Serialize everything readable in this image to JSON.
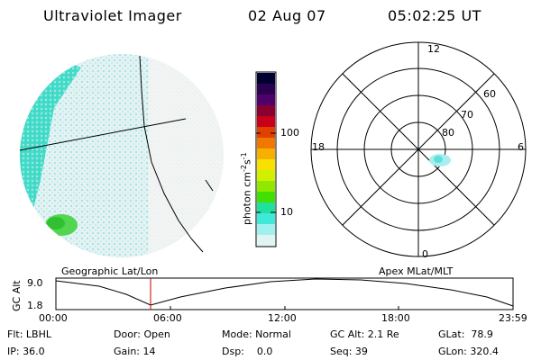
{
  "header": {
    "title": "Ultraviolet Imager",
    "date": "02 Aug 07",
    "time": "05:02:25 UT"
  },
  "colorbar": {
    "label": "photon cm",
    "label_sup1": "-2",
    "label_mid": "s",
    "label_sup2": "-1",
    "tick_high": "100",
    "tick_low": "10",
    "colors": [
      "#000030",
      "#2a0050",
      "#50006a",
      "#8a0030",
      "#c8001a",
      "#e04000",
      "#f07800",
      "#f8b000",
      "#f8e000",
      "#d0f000",
      "#90e800",
      "#40e000",
      "#20e0a0",
      "#40e8d8",
      "#a0f0f0",
      "#e0f4f4"
    ]
  },
  "polar_plot": {
    "labels_mlt": [
      "12",
      "18",
      "6",
      "0"
    ],
    "labels_lat": [
      "60",
      "70",
      "80"
    ]
  },
  "timeline": {
    "y_axis_label": "GC Alt",
    "y_ticks": [
      "9.0",
      "1.8"
    ],
    "left_title": "Geographic Lat/Lon",
    "right_title": "Apex MLat/MLT",
    "x_ticks": [
      "00:00",
      "06:00",
      "12:00",
      "18:00",
      "23:59"
    ]
  },
  "info": {
    "flt": "Flt: LBHL",
    "ip": "IP: 36.0",
    "door": "Door: Open",
    "gain": "Gain: 14",
    "mode": "Mode: Normal",
    "dsp_label": "Dsp:",
    "dsp_value": "0.0",
    "gcalt": "GC Alt: 2.1 Re",
    "seq": "Seq: 39",
    "glat_label": "GLat:",
    "glat_value": "78.9",
    "glon_label": "GLon:",
    "glon_value": "320.4"
  }
}
